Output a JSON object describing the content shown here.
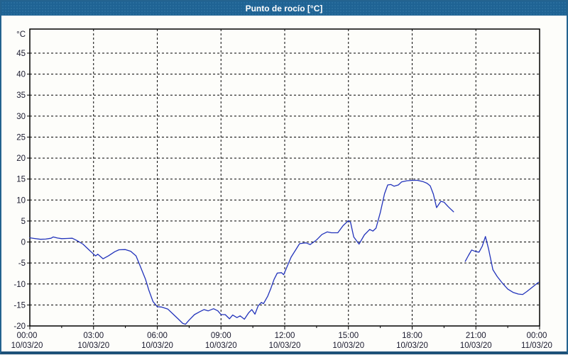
{
  "window": {
    "title": "Punto de rocío [°C]"
  },
  "colors": {
    "titlebar_bg": "#1f6394",
    "titlebar_text": "#ffffff",
    "frame_border": "#24638f",
    "plot_border": "#000000",
    "grid": "#000000",
    "axis_text": "#1a1a2e",
    "line": "#2233bb",
    "plot_bg": "#fdfdfa"
  },
  "chart_data": {
    "type": "line",
    "title": "Punto de rocío [°C]",
    "xlabel": "",
    "ylabel": "°C",
    "legend": "none",
    "grid": "dashed",
    "x_axis": {
      "unit": "time",
      "range_hours": [
        0,
        24
      ],
      "major_tick_hours": 3,
      "minor_tick_hours": 1.5,
      "ticks": [
        {
          "hour": 0,
          "time": "00:00",
          "date": "10/03/20"
        },
        {
          "hour": 3,
          "time": "03:00",
          "date": "10/03/20"
        },
        {
          "hour": 6,
          "time": "06:00",
          "date": "10/03/20"
        },
        {
          "hour": 9,
          "time": "09:00",
          "date": "10/03/20"
        },
        {
          "hour": 12,
          "time": "12:00",
          "date": "10/03/20"
        },
        {
          "hour": 15,
          "time": "15:00",
          "date": "10/03/20"
        },
        {
          "hour": 18,
          "time": "18:00",
          "date": "10/03/20"
        },
        {
          "hour": 21,
          "time": "21:00",
          "date": "10/03/20"
        },
        {
          "hour": 24,
          "time": "00:00",
          "date": "11/03/20"
        }
      ]
    },
    "y_axis": {
      "unit_label": "°C",
      "ylim_labeled": [
        -20,
        45
      ],
      "ylim_drawn": [
        -20,
        50.7
      ],
      "tick_step": 5,
      "tick_values": [
        45,
        40,
        35,
        30,
        25,
        20,
        15,
        10,
        5,
        0,
        -5,
        -10,
        -15,
        -20
      ],
      "tick_labels": [
        "45",
        "40",
        "35",
        "30",
        "25",
        "20",
        "15",
        "10",
        "5",
        "0",
        "-5",
        "-10",
        "-15",
        "-20"
      ]
    },
    "series": [
      {
        "name": "Punto de rocío",
        "color": "#2233bb",
        "note": "two segments separated by a data gap ~20:00-20:30",
        "segments": [
          [
            [
              0.0,
              1.0
            ],
            [
              0.2,
              0.85
            ],
            [
              0.5,
              0.65
            ],
            [
              0.75,
              0.7
            ],
            [
              1.0,
              0.9
            ],
            [
              1.1,
              1.2
            ],
            [
              1.3,
              0.95
            ],
            [
              1.5,
              0.8
            ],
            [
              1.75,
              0.85
            ],
            [
              2.0,
              0.9
            ],
            [
              2.2,
              0.4
            ],
            [
              2.5,
              -0.5
            ],
            [
              2.75,
              -1.7
            ],
            [
              3.0,
              -2.9
            ],
            [
              3.1,
              -3.3
            ],
            [
              3.2,
              -2.9
            ],
            [
              3.45,
              -4.0
            ],
            [
              3.7,
              -3.3
            ],
            [
              4.0,
              -2.3
            ],
            [
              4.2,
              -1.85
            ],
            [
              4.5,
              -1.8
            ],
            [
              4.75,
              -2.2
            ],
            [
              5.0,
              -3.3
            ],
            [
              5.2,
              -5.8
            ],
            [
              5.45,
              -8.9
            ],
            [
              5.6,
              -11.4
            ],
            [
              5.8,
              -14.2
            ],
            [
              6.0,
              -15.4
            ],
            [
              6.2,
              -15.5
            ],
            [
              6.5,
              -16.0
            ],
            [
              6.75,
              -17.2
            ],
            [
              7.0,
              -18.4
            ],
            [
              7.2,
              -19.4
            ],
            [
              7.33,
              -19.6
            ],
            [
              7.5,
              -18.6
            ],
            [
              7.75,
              -17.3
            ],
            [
              8.0,
              -16.6
            ],
            [
              8.2,
              -16.1
            ],
            [
              8.4,
              -16.4
            ],
            [
              8.65,
              -15.9
            ],
            [
              8.85,
              -16.4
            ],
            [
              9.0,
              -17.3
            ],
            [
              9.2,
              -17.3
            ],
            [
              9.4,
              -18.3
            ],
            [
              9.55,
              -17.4
            ],
            [
              9.75,
              -18.0
            ],
            [
              9.9,
              -17.6
            ],
            [
              10.1,
              -18.4
            ],
            [
              10.3,
              -16.9
            ],
            [
              10.45,
              -16.1
            ],
            [
              10.6,
              -17.2
            ],
            [
              10.75,
              -15.2
            ],
            [
              10.9,
              -14.4
            ],
            [
              11.0,
              -14.7
            ],
            [
              11.2,
              -12.9
            ],
            [
              11.35,
              -11.0
            ],
            [
              11.5,
              -8.9
            ],
            [
              11.65,
              -7.4
            ],
            [
              11.85,
              -7.3
            ],
            [
              11.95,
              -7.8
            ],
            [
              12.1,
              -6.0
            ],
            [
              12.3,
              -3.6
            ],
            [
              12.5,
              -2.0
            ],
            [
              12.7,
              -0.4
            ],
            [
              13.0,
              -0.2
            ],
            [
              13.2,
              -0.6
            ],
            [
              13.5,
              0.5
            ],
            [
              13.75,
              1.8
            ],
            [
              14.0,
              2.4
            ],
            [
              14.2,
              2.2
            ],
            [
              14.5,
              2.2
            ],
            [
              14.75,
              3.9
            ],
            [
              15.0,
              5.1
            ],
            [
              15.1,
              4.7
            ],
            [
              15.25,
              1.2
            ],
            [
              15.5,
              -0.5
            ],
            [
              15.75,
              1.7
            ],
            [
              16.0,
              3.0
            ],
            [
              16.15,
              2.6
            ],
            [
              16.3,
              3.3
            ],
            [
              16.5,
              7.0
            ],
            [
              16.7,
              11.5
            ],
            [
              16.85,
              13.6
            ],
            [
              17.0,
              13.7
            ],
            [
              17.15,
              13.3
            ],
            [
              17.35,
              13.6
            ],
            [
              17.5,
              14.3
            ],
            [
              17.75,
              14.6
            ],
            [
              18.0,
              14.7
            ],
            [
              18.25,
              14.7
            ],
            [
              18.5,
              14.4
            ],
            [
              18.7,
              14.0
            ],
            [
              18.85,
              13.4
            ],
            [
              19.0,
              11.4
            ],
            [
              19.15,
              8.2
            ],
            [
              19.35,
              9.7
            ],
            [
              19.5,
              9.5
            ],
            [
              19.7,
              8.4
            ],
            [
              19.95,
              7.2
            ]
          ],
          [
            [
              20.5,
              -4.6
            ],
            [
              20.65,
              -3.2
            ],
            [
              20.8,
              -1.9
            ],
            [
              21.0,
              -2.3
            ],
            [
              21.15,
              -2.4
            ],
            [
              21.3,
              -1.0
            ],
            [
              21.45,
              1.3
            ],
            [
              21.6,
              -1.7
            ],
            [
              21.8,
              -6.6
            ],
            [
              22.0,
              -8.2
            ],
            [
              22.25,
              -9.8
            ],
            [
              22.5,
              -11.2
            ],
            [
              22.75,
              -12.0
            ],
            [
              23.0,
              -12.4
            ],
            [
              23.2,
              -12.5
            ],
            [
              23.4,
              -11.8
            ],
            [
              23.65,
              -10.8
            ],
            [
              23.85,
              -10.0
            ],
            [
              23.95,
              -9.6
            ]
          ]
        ]
      }
    ]
  }
}
